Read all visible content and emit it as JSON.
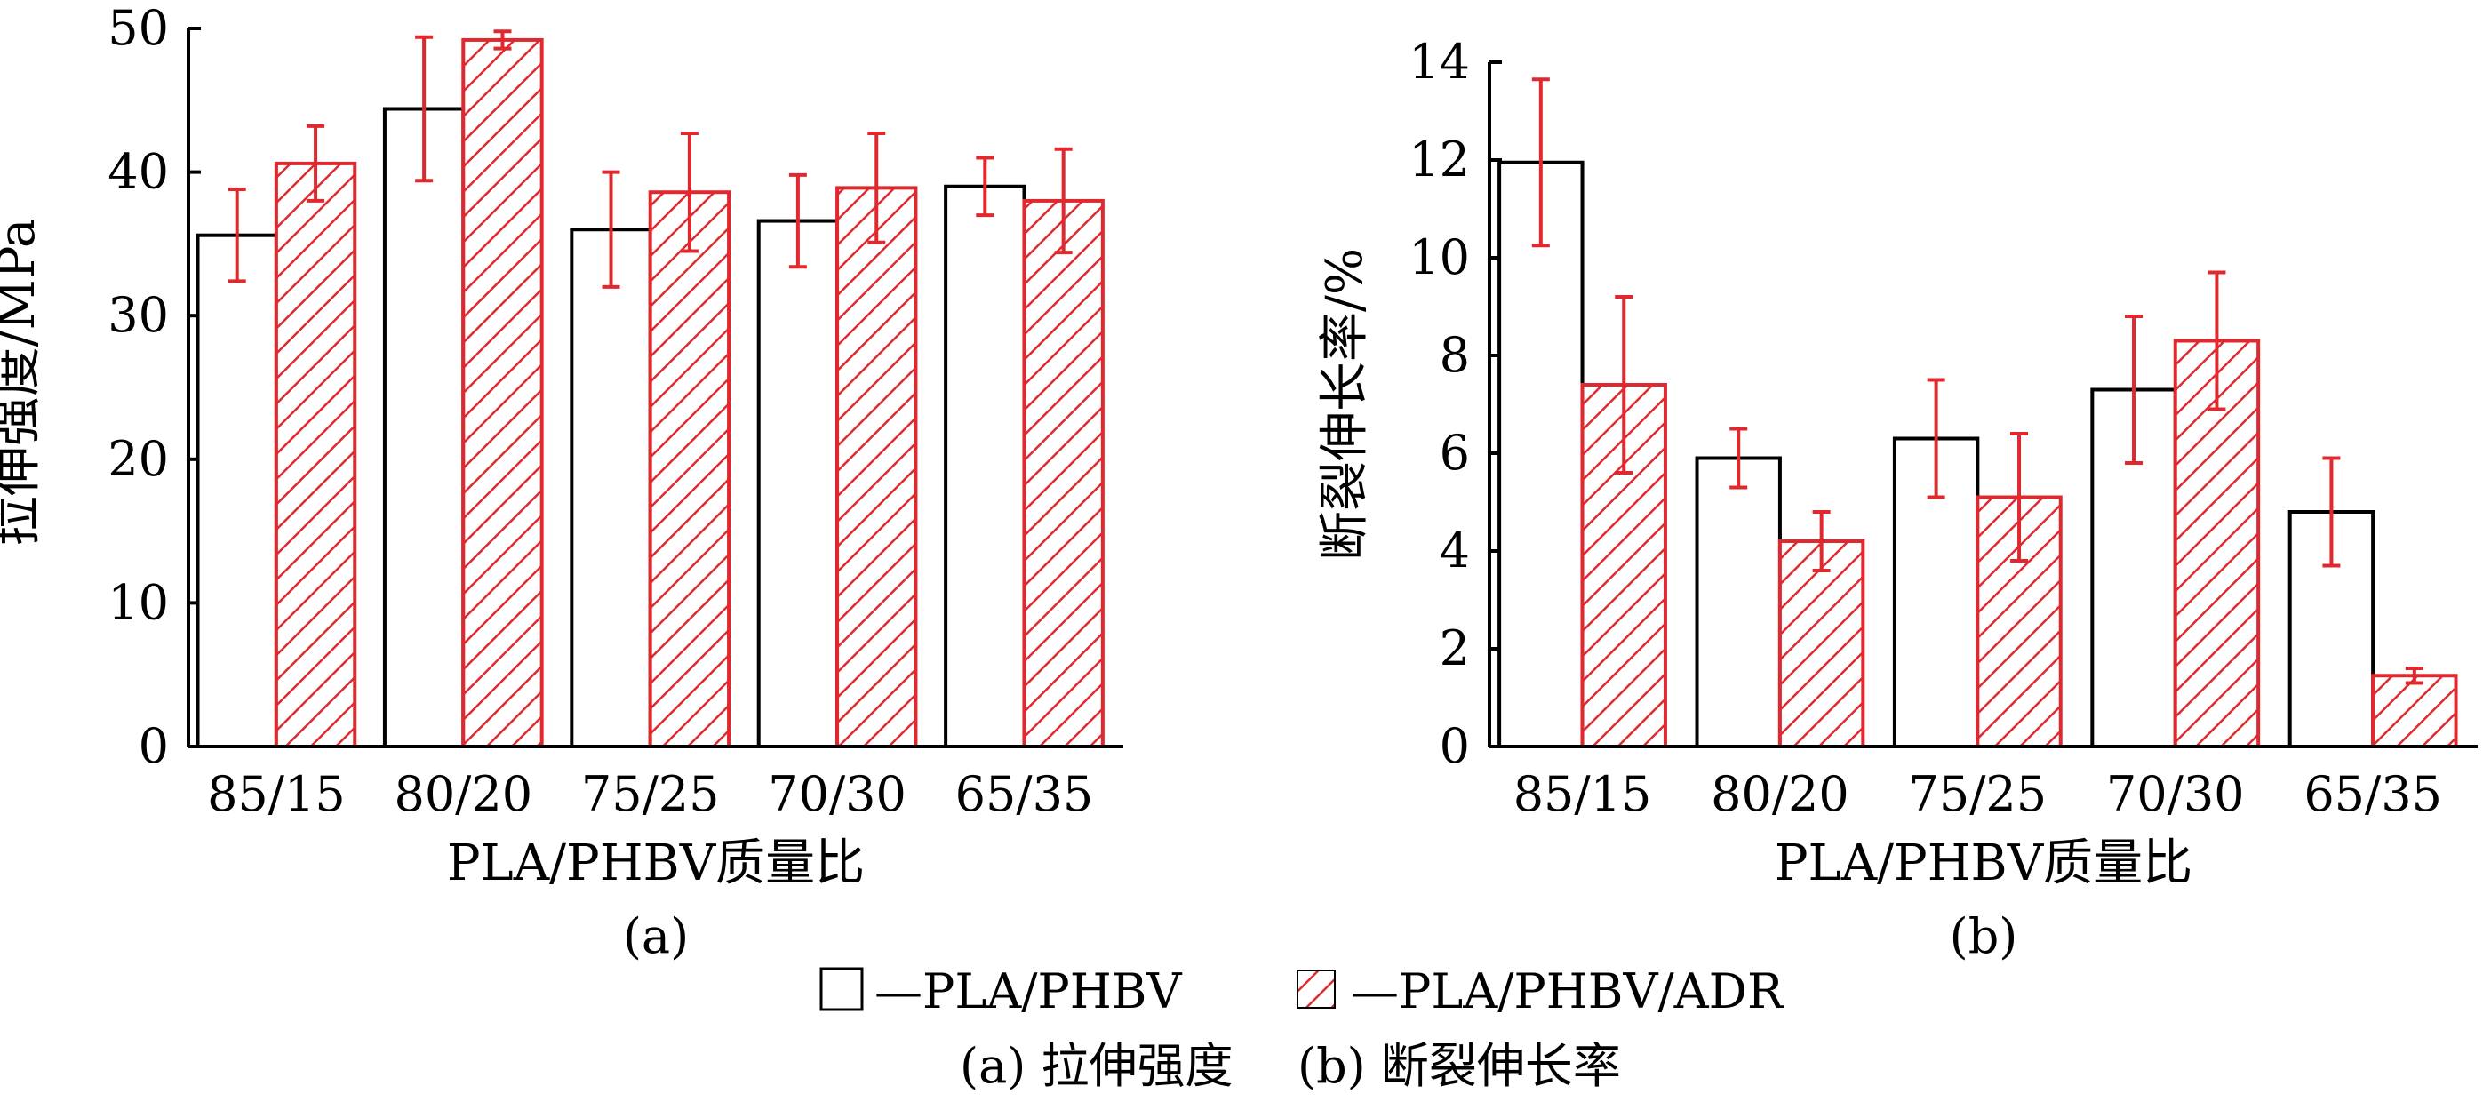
{
  "chart_data": [
    {
      "type": "bar",
      "panel_label": "(a)",
      "categories": [
        "85/15",
        "80/20",
        "75/25",
        "70/30",
        "65/35"
      ],
      "xlabel": "PLA/PHBV质量比",
      "ylabel": "拉伸强度/MPa",
      "ylim": [
        0,
        50
      ],
      "yticks": [
        0,
        10,
        20,
        30,
        40,
        50
      ],
      "grid": false,
      "series": [
        {
          "name": "PLA/PHBV",
          "values": [
            35.6,
            44.4,
            36.0,
            36.6,
            39.0
          ],
          "errors": [
            3.2,
            5.0,
            4.0,
            3.2,
            2.0
          ],
          "style": "open",
          "color": "#000000"
        },
        {
          "name": "PLA/PHBV/ADR",
          "values": [
            40.6,
            49.2,
            38.6,
            38.9,
            38.0
          ],
          "errors": [
            2.6,
            0.6,
            4.1,
            3.8,
            3.6
          ],
          "style": "hatched",
          "color": "#e0292f"
        }
      ]
    },
    {
      "type": "bar",
      "panel_label": "(b)",
      "categories": [
        "85/15",
        "80/20",
        "75/25",
        "70/30",
        "65/35"
      ],
      "xlabel": "PLA/PHBV质量比",
      "ylabel": "断裂伸长率/%",
      "ylim": [
        0,
        14
      ],
      "yticks": [
        0,
        2,
        4,
        6,
        8,
        10,
        12,
        14
      ],
      "grid": false,
      "series": [
        {
          "name": "PLA/PHBV",
          "values": [
            11.95,
            5.9,
            6.3,
            7.3,
            4.8
          ],
          "errors": [
            1.7,
            0.6,
            1.2,
            1.5,
            1.1
          ],
          "style": "open",
          "color": "#000000"
        },
        {
          "name": "PLA/PHBV/ADR",
          "values": [
            7.4,
            4.2,
            5.1,
            8.3,
            1.45
          ],
          "errors": [
            1.8,
            0.6,
            1.3,
            1.4,
            0.15
          ],
          "style": "hatched",
          "color": "#e0292f"
        }
      ]
    }
  ],
  "legend": {
    "items": [
      {
        "label": "—PLA/PHBV",
        "style": "open"
      },
      {
        "label": "—PLA/PHBV/ADR",
        "style": "hatched"
      }
    ],
    "placement": "bottom-center"
  },
  "caption": {
    "part_a": "(a) 拉伸强度",
    "part_b": "(b) 断裂伸长率"
  },
  "colors": {
    "error_bar": "#e0292f",
    "hatch_series": "#e0292f",
    "open_series": "#000000",
    "axis": "#000000"
  }
}
